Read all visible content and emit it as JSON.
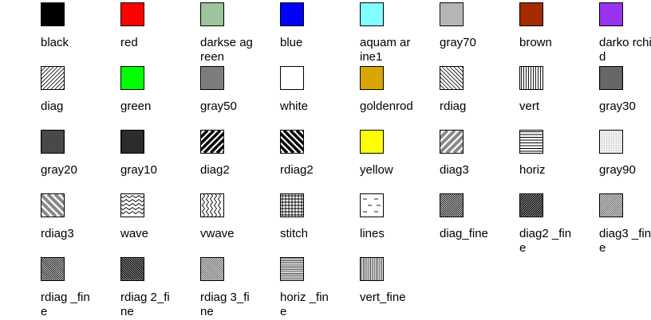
{
  "palette_items": [
    {
      "name": "black",
      "label": "black",
      "type": "color",
      "color": "#000000"
    },
    {
      "name": "red",
      "label": "red",
      "type": "color",
      "color": "#ff0000"
    },
    {
      "name": "darkseagreen",
      "label": "darkse agreen",
      "type": "pattern",
      "pattern": "darkseagreen",
      "color": "#8fbc8f"
    },
    {
      "name": "blue",
      "label": "blue",
      "type": "color",
      "color": "#0000ff"
    },
    {
      "name": "aquamarine1",
      "label": "aquam arine1",
      "type": "color",
      "color": "#7fffff"
    },
    {
      "name": "gray70",
      "label": "gray70",
      "type": "pattern",
      "pattern": "gray70"
    },
    {
      "name": "brown",
      "label": "brown",
      "type": "color",
      "color": "#a52a00"
    },
    {
      "name": "darkorchid",
      "label": "darko rchid",
      "type": "color",
      "color": "#9932ee"
    },
    {
      "name": "diag",
      "label": "diag",
      "type": "pattern",
      "pattern": "diag"
    },
    {
      "name": "green",
      "label": "green",
      "type": "color",
      "color": "#00ff00"
    },
    {
      "name": "gray50",
      "label": "gray50",
      "type": "pattern",
      "pattern": "gray50"
    },
    {
      "name": "white",
      "label": "white",
      "type": "color",
      "color": "#ffffff"
    },
    {
      "name": "goldenrod",
      "label": "goldenrod",
      "type": "color",
      "color": "#daa500"
    },
    {
      "name": "rdiag",
      "label": "rdiag",
      "type": "pattern",
      "pattern": "rdiag"
    },
    {
      "name": "vert",
      "label": "vert",
      "type": "pattern",
      "pattern": "vert"
    },
    {
      "name": "gray30",
      "label": "gray30",
      "type": "pattern",
      "pattern": "gray30"
    },
    {
      "name": "gray20",
      "label": "gray20",
      "type": "pattern",
      "pattern": "gray20"
    },
    {
      "name": "gray10",
      "label": "gray10",
      "type": "pattern",
      "pattern": "gray10"
    },
    {
      "name": "diag2",
      "label": "diag2",
      "type": "pattern",
      "pattern": "diag2"
    },
    {
      "name": "rdiag2",
      "label": "rdiag2",
      "type": "pattern",
      "pattern": "rdiag2"
    },
    {
      "name": "yellow",
      "label": "yellow",
      "type": "color",
      "color": "#ffff00"
    },
    {
      "name": "diag3",
      "label": "diag3",
      "type": "pattern",
      "pattern": "diag3"
    },
    {
      "name": "horiz",
      "label": "horiz",
      "type": "pattern",
      "pattern": "horiz"
    },
    {
      "name": "gray90",
      "label": "gray90",
      "type": "pattern",
      "pattern": "gray90"
    },
    {
      "name": "rdiag3",
      "label": "rdiag3",
      "type": "pattern",
      "pattern": "rdiag3"
    },
    {
      "name": "wave",
      "label": "wave",
      "type": "pattern",
      "pattern": "wave"
    },
    {
      "name": "vwave",
      "label": "vwave",
      "type": "pattern",
      "pattern": "vwave"
    },
    {
      "name": "stitch",
      "label": "stitch",
      "type": "pattern",
      "pattern": "stitch"
    },
    {
      "name": "lines",
      "label": "lines",
      "type": "pattern",
      "pattern": "lines"
    },
    {
      "name": "diag_fine",
      "label": "diag_fine",
      "type": "pattern",
      "pattern": "diag_fine"
    },
    {
      "name": "diag2_fine",
      "label": "diag2 _fine",
      "type": "pattern",
      "pattern": "diag2_fine"
    },
    {
      "name": "diag3_fine",
      "label": "diag3 _fine",
      "type": "pattern",
      "pattern": "diag3_fine"
    },
    {
      "name": "rdiag_fine",
      "label": "rdiag _fine",
      "type": "pattern",
      "pattern": "rdiag_fine"
    },
    {
      "name": "rdiag2_fine",
      "label": "rdiag 2_fine",
      "type": "pattern",
      "pattern": "rdiag2_fine"
    },
    {
      "name": "rdiag3_fine",
      "label": "rdiag 3_fine",
      "type": "pattern",
      "pattern": "rdiag3_fine"
    },
    {
      "name": "horiz_fine",
      "label": "horiz _fine",
      "type": "pattern",
      "pattern": "horiz_fine"
    },
    {
      "name": "vert_fine",
      "label": "vert_fine",
      "type": "pattern",
      "pattern": "vert_fine"
    }
  ]
}
